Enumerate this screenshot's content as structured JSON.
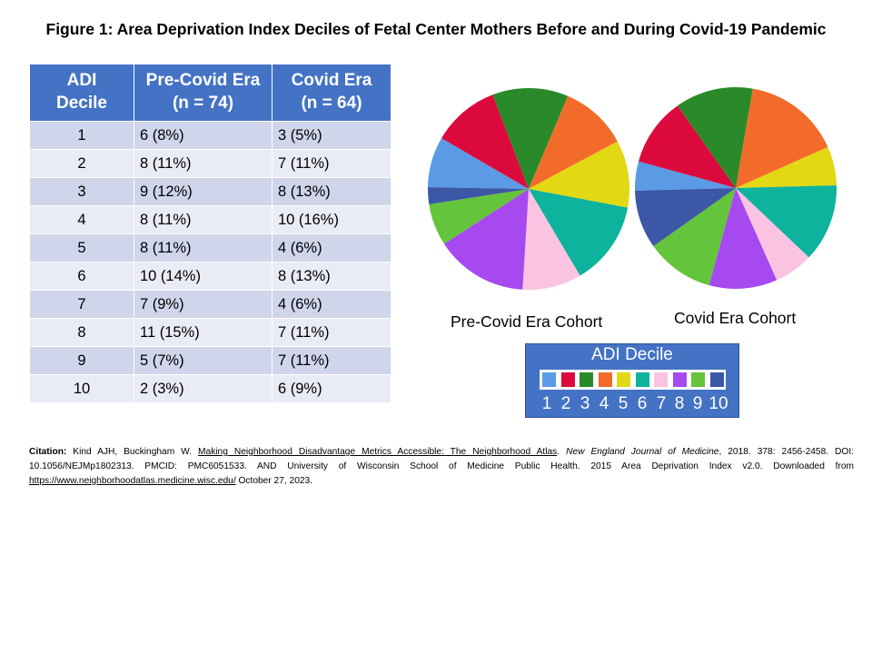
{
  "title": "Figure 1: Area Deprivation  Index Deciles of Fetal Center Mothers Before and During Covid-19 Pandemic",
  "table": {
    "headers": [
      [
        "ADI",
        "Decile"
      ],
      [
        "Pre-Covid Era",
        "(n = 74)"
      ],
      [
        "Covid Era",
        "(n = 64)"
      ]
    ],
    "rows": [
      [
        "1",
        "6 (8%)",
        "3 (5%)"
      ],
      [
        "2",
        "8 (11%)",
        "7 (11%)"
      ],
      [
        "3",
        "9 (12%)",
        "8 (13%)"
      ],
      [
        "4",
        "8 (11%)",
        "10 (16%)"
      ],
      [
        "5",
        "8 (11%)",
        "4 (6%)"
      ],
      [
        "6",
        "10 (14%)",
        "8 (13%)"
      ],
      [
        "7",
        "7 (9%)",
        "4 (6%)"
      ],
      [
        "8",
        "11 (15%)",
        "7 (11%)"
      ],
      [
        "9",
        "5 (7%)",
        "7 (11%)"
      ],
      [
        "10",
        "2 (3%)",
        "6 (9%)"
      ]
    ]
  },
  "chart_data": [
    {
      "type": "pie",
      "title": "Pre-Covid Era Cohort",
      "categories": [
        "1",
        "2",
        "3",
        "4",
        "5",
        "6",
        "7",
        "8",
        "9",
        "10"
      ],
      "values": [
        6,
        8,
        9,
        8,
        8,
        10,
        7,
        11,
        5,
        2
      ],
      "colors": [
        "#5b9be6",
        "#dc0a3c",
        "#2a8a2a",
        "#f26b2a",
        "#e2d813",
        "#0db39d",
        "#fac3e1",
        "#a649ef",
        "#64c43c",
        "#3c57a6"
      ],
      "legend_position": "bottom"
    },
    {
      "type": "pie",
      "title": "Covid Era Cohort",
      "categories": [
        "1",
        "2",
        "3",
        "4",
        "5",
        "6",
        "7",
        "8",
        "9",
        "10"
      ],
      "values": [
        3,
        7,
        8,
        10,
        4,
        8,
        4,
        7,
        7,
        6
      ],
      "colors": [
        "#5b9be6",
        "#dc0a3c",
        "#2a8a2a",
        "#f26b2a",
        "#e2d813",
        "#0db39d",
        "#fac3e1",
        "#a649ef",
        "#64c43c",
        "#3c57a6"
      ],
      "legend_position": "bottom"
    }
  ],
  "legend": {
    "title": "ADI Decile",
    "items": [
      "1",
      "2",
      "3",
      "4",
      "5",
      "6",
      "7",
      "8",
      "9",
      "10"
    ]
  },
  "citation": {
    "label": "Citation:",
    "authors": " Kind AJH, Buckingham W. ",
    "article": "Making Neighborhood Disadvantage Metrics Accessible: The Neighborhood Atlas",
    "sep": ". ",
    "journal": "New England Journal of Medicine",
    "details": ", 2018. 378: 2456-2458. DOI: 10.1056/NEJMp1802313. PMCID: PMC6051533. AND University of Wisconsin School of Medicine Public Health. 2015 Area Deprivation Index v2.0. Downloaded from ",
    "url": "https://www.neighborhoodatlas.medicine.wisc.edu/",
    "date": " October 27, 2023."
  }
}
